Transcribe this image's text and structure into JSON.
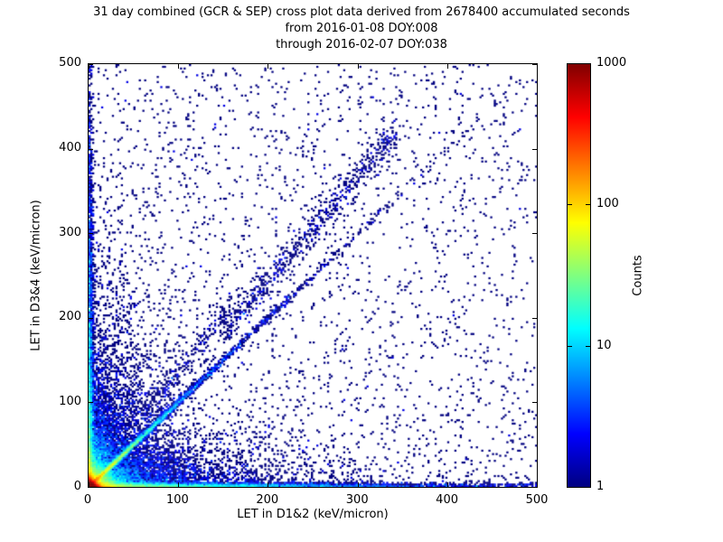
{
  "chart_data": {
    "type": "heatmap",
    "title": "31 day combined (GCR & SEP) cross plot data derived from 2678400 accumulated seconds",
    "subtitle1": "from 2016-01-08 DOY:008",
    "subtitle2": "through 2016-02-07 DOY:038",
    "xlabel": "LET in D1&2 (keV/micron)",
    "ylabel": "LET in D3&4 (keV/micron)",
    "xlim": [
      0,
      500
    ],
    "ylim": [
      0,
      500
    ],
    "x_ticks": [
      0,
      100,
      200,
      300,
      400,
      500
    ],
    "y_ticks": [
      0,
      100,
      200,
      300,
      400,
      500
    ],
    "colorbar": {
      "label": "Counts",
      "scale": "log",
      "min": 1,
      "max": 1000,
      "ticks": [
        1,
        10,
        100,
        1000
      ],
      "colormap": "jet",
      "gradient_stops": [
        {
          "pos": 0,
          "color": "#000080"
        },
        {
          "pos": 0.125,
          "color": "#0000ff"
        },
        {
          "pos": 0.375,
          "color": "#00ffff"
        },
        {
          "pos": 0.625,
          "color": "#ffff00"
        },
        {
          "pos": 0.875,
          "color": "#ff0000"
        },
        {
          "pos": 1,
          "color": "#800000"
        }
      ]
    },
    "distribution": {
      "description": "2D log-count histogram: intense hotspot at origin, bright y=x coincidence ridge to ~100 keV/micron fading to ~260, dense bands along both axes thinning outward, sparse single-count scatter over full field, faint secondary ridge of slope ~1.2 from (150,185) to (345,420)",
      "seed": 20160108,
      "bins": 250,
      "clusters": [
        {
          "kind": "exp2d",
          "n": 60000,
          "sx": 2.2,
          "sy": 2.0
        },
        {
          "kind": "exp2d",
          "n": 9000,
          "sx": 10,
          "sy": 9
        },
        {
          "kind": "exp2d",
          "n": 5000,
          "sx": 34,
          "sy": 30
        },
        {
          "kind": "diag",
          "n": 4500,
          "scale": 32,
          "slope": 1.0,
          "noise": 1.6
        },
        {
          "kind": "diag",
          "n": 1600,
          "scale": 105,
          "slope": 1.0,
          "noise": 2.5
        },
        {
          "kind": "fan_up",
          "n": 2600,
          "sx": 26,
          "sy": 75
        },
        {
          "kind": "fan_right",
          "n": 2200,
          "sx": 95,
          "sy": 22
        },
        {
          "kind": "band_x",
          "n": 5200,
          "scale": 150,
          "thick": 2.5
        },
        {
          "kind": "band_y",
          "n": 3600,
          "scale": 135,
          "thick": 2.5
        },
        {
          "kind": "uniform",
          "n": 2300
        },
        {
          "kind": "diag2",
          "n": 650,
          "x0": 150,
          "x1": 345,
          "slope": 1.22,
          "noise": 11
        },
        {
          "kind": "diag2",
          "n": 220,
          "x0": 60,
          "x1": 160,
          "slope": 1.35,
          "noise": 8
        }
      ]
    }
  }
}
